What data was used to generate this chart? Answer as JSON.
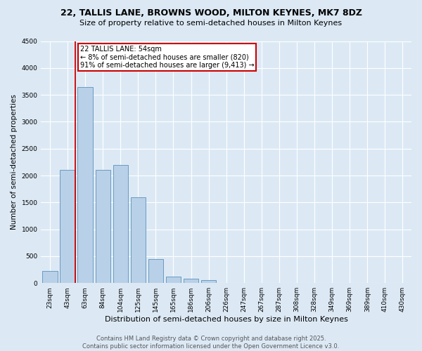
{
  "title": "22, TALLIS LANE, BROWNS WOOD, MILTON KEYNES, MK7 8DZ",
  "subtitle": "Size of property relative to semi-detached houses in Milton Keynes",
  "xlabel": "Distribution of semi-detached houses by size in Milton Keynes",
  "ylabel": "Number of semi-detached properties",
  "bar_color": "#b8d0e8",
  "bar_edge_color": "#6a9cc0",
  "background_color": "#dce9f5",
  "plot_bg_color": "#dce9f5",
  "categories": [
    "23sqm",
    "43sqm",
    "63sqm",
    "84sqm",
    "104sqm",
    "125sqm",
    "145sqm",
    "165sqm",
    "186sqm",
    "206sqm",
    "226sqm",
    "247sqm",
    "267sqm",
    "287sqm",
    "308sqm",
    "328sqm",
    "349sqm",
    "369sqm",
    "389sqm",
    "410sqm",
    "430sqm"
  ],
  "values": [
    220,
    2100,
    3650,
    2100,
    2200,
    1600,
    450,
    120,
    80,
    50,
    5,
    2,
    1,
    0,
    0,
    0,
    0,
    0,
    0,
    0,
    0
  ],
  "ylim": [
    0,
    4500
  ],
  "yticks": [
    0,
    500,
    1000,
    1500,
    2000,
    2500,
    3000,
    3500,
    4000,
    4500
  ],
  "property_label": "22 TALLIS LANE: 54sqm",
  "annotation_line1": "← 8% of semi-detached houses are smaller (820)",
  "annotation_line2": "91% of semi-detached houses are larger (9,413) →",
  "vline_color": "#cc0000",
  "vline_x": 1.45,
  "annotation_box_color": "#cc0000",
  "footer": "Contains HM Land Registry data © Crown copyright and database right 2025.\nContains public sector information licensed under the Open Government Licence v3.0.",
  "figsize": [
    6.0,
    5.0
  ],
  "dpi": 100,
  "title_fontsize": 9,
  "subtitle_fontsize": 8,
  "ylabel_fontsize": 7.5,
  "xlabel_fontsize": 8,
  "tick_fontsize": 6.5,
  "footer_fontsize": 6,
  "annot_fontsize": 7
}
